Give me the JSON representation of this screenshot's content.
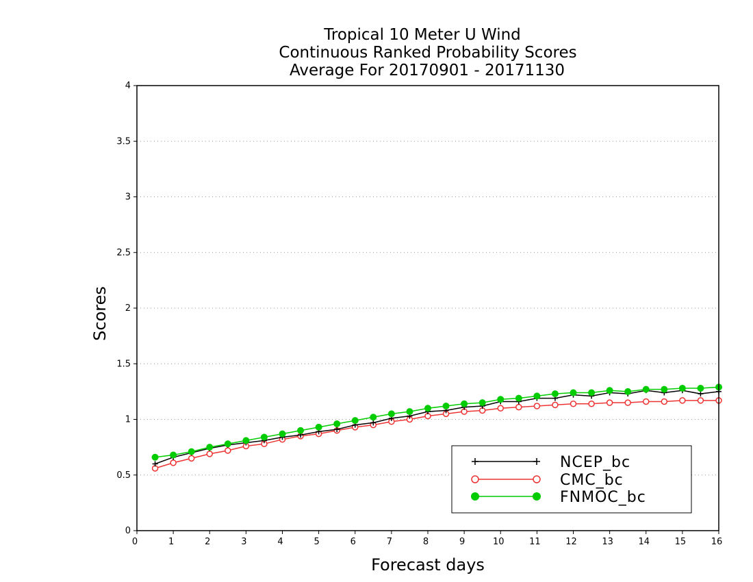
{
  "chart_data": {
    "type": "line",
    "title": [
      "Tropical 10 Meter U Wind",
      "Continuous Ranked Probability Scores",
      "Average For 20170901 - 20171130"
    ],
    "xlabel": "Forecast days",
    "ylabel": "Scores",
    "xlim": [
      0,
      16
    ],
    "ylim": [
      0,
      4
    ],
    "x_ticks": [
      "0",
      "1",
      "2",
      "3",
      "4",
      "5",
      "6",
      "7",
      "8",
      "9",
      "10",
      "11",
      "12",
      "13",
      "14",
      "15",
      "16"
    ],
    "y_ticks": [
      "0",
      "0.5",
      "1",
      "1.5",
      "2",
      "2.5",
      "3",
      "3.5",
      "4"
    ],
    "grid": "horizontal-dotted",
    "legend_position": "bottom-right",
    "x": [
      0.5,
      1,
      1.5,
      2,
      2.5,
      3,
      3.5,
      4,
      4.5,
      5,
      5.5,
      6,
      6.5,
      7,
      7.5,
      8,
      8.5,
      9,
      9.5,
      10,
      10.5,
      11,
      11.5,
      12,
      12.5,
      13,
      13.5,
      14,
      14.5,
      15,
      15.5,
      16
    ],
    "series": [
      {
        "name": "NCEP_bc",
        "color": "#000000",
        "marker": "plus",
        "values": [
          0.6,
          0.66,
          0.7,
          0.74,
          0.77,
          0.79,
          0.81,
          0.84,
          0.86,
          0.89,
          0.91,
          0.95,
          0.97,
          1.01,
          1.03,
          1.07,
          1.08,
          1.11,
          1.12,
          1.16,
          1.16,
          1.19,
          1.19,
          1.22,
          1.21,
          1.24,
          1.23,
          1.26,
          1.24,
          1.26,
          1.23,
          1.25
        ]
      },
      {
        "name": "CMC_bc",
        "color": "#ee3333",
        "marker": "open-circle",
        "values": [
          0.56,
          0.61,
          0.65,
          0.69,
          0.72,
          0.76,
          0.78,
          0.82,
          0.85,
          0.87,
          0.9,
          0.93,
          0.95,
          0.98,
          1.0,
          1.03,
          1.05,
          1.07,
          1.08,
          1.1,
          1.11,
          1.12,
          1.13,
          1.14,
          1.14,
          1.15,
          1.15,
          1.16,
          1.16,
          1.17,
          1.17,
          1.17
        ]
      },
      {
        "name": "FNMOC_bc",
        "color": "#00cc00",
        "marker": "filled-circle",
        "values": [
          0.66,
          0.68,
          0.71,
          0.75,
          0.78,
          0.81,
          0.84,
          0.87,
          0.9,
          0.93,
          0.96,
          0.99,
          1.02,
          1.05,
          1.07,
          1.1,
          1.12,
          1.14,
          1.15,
          1.18,
          1.19,
          1.21,
          1.23,
          1.24,
          1.24,
          1.26,
          1.25,
          1.27,
          1.27,
          1.28,
          1.28,
          1.29
        ]
      }
    ]
  }
}
